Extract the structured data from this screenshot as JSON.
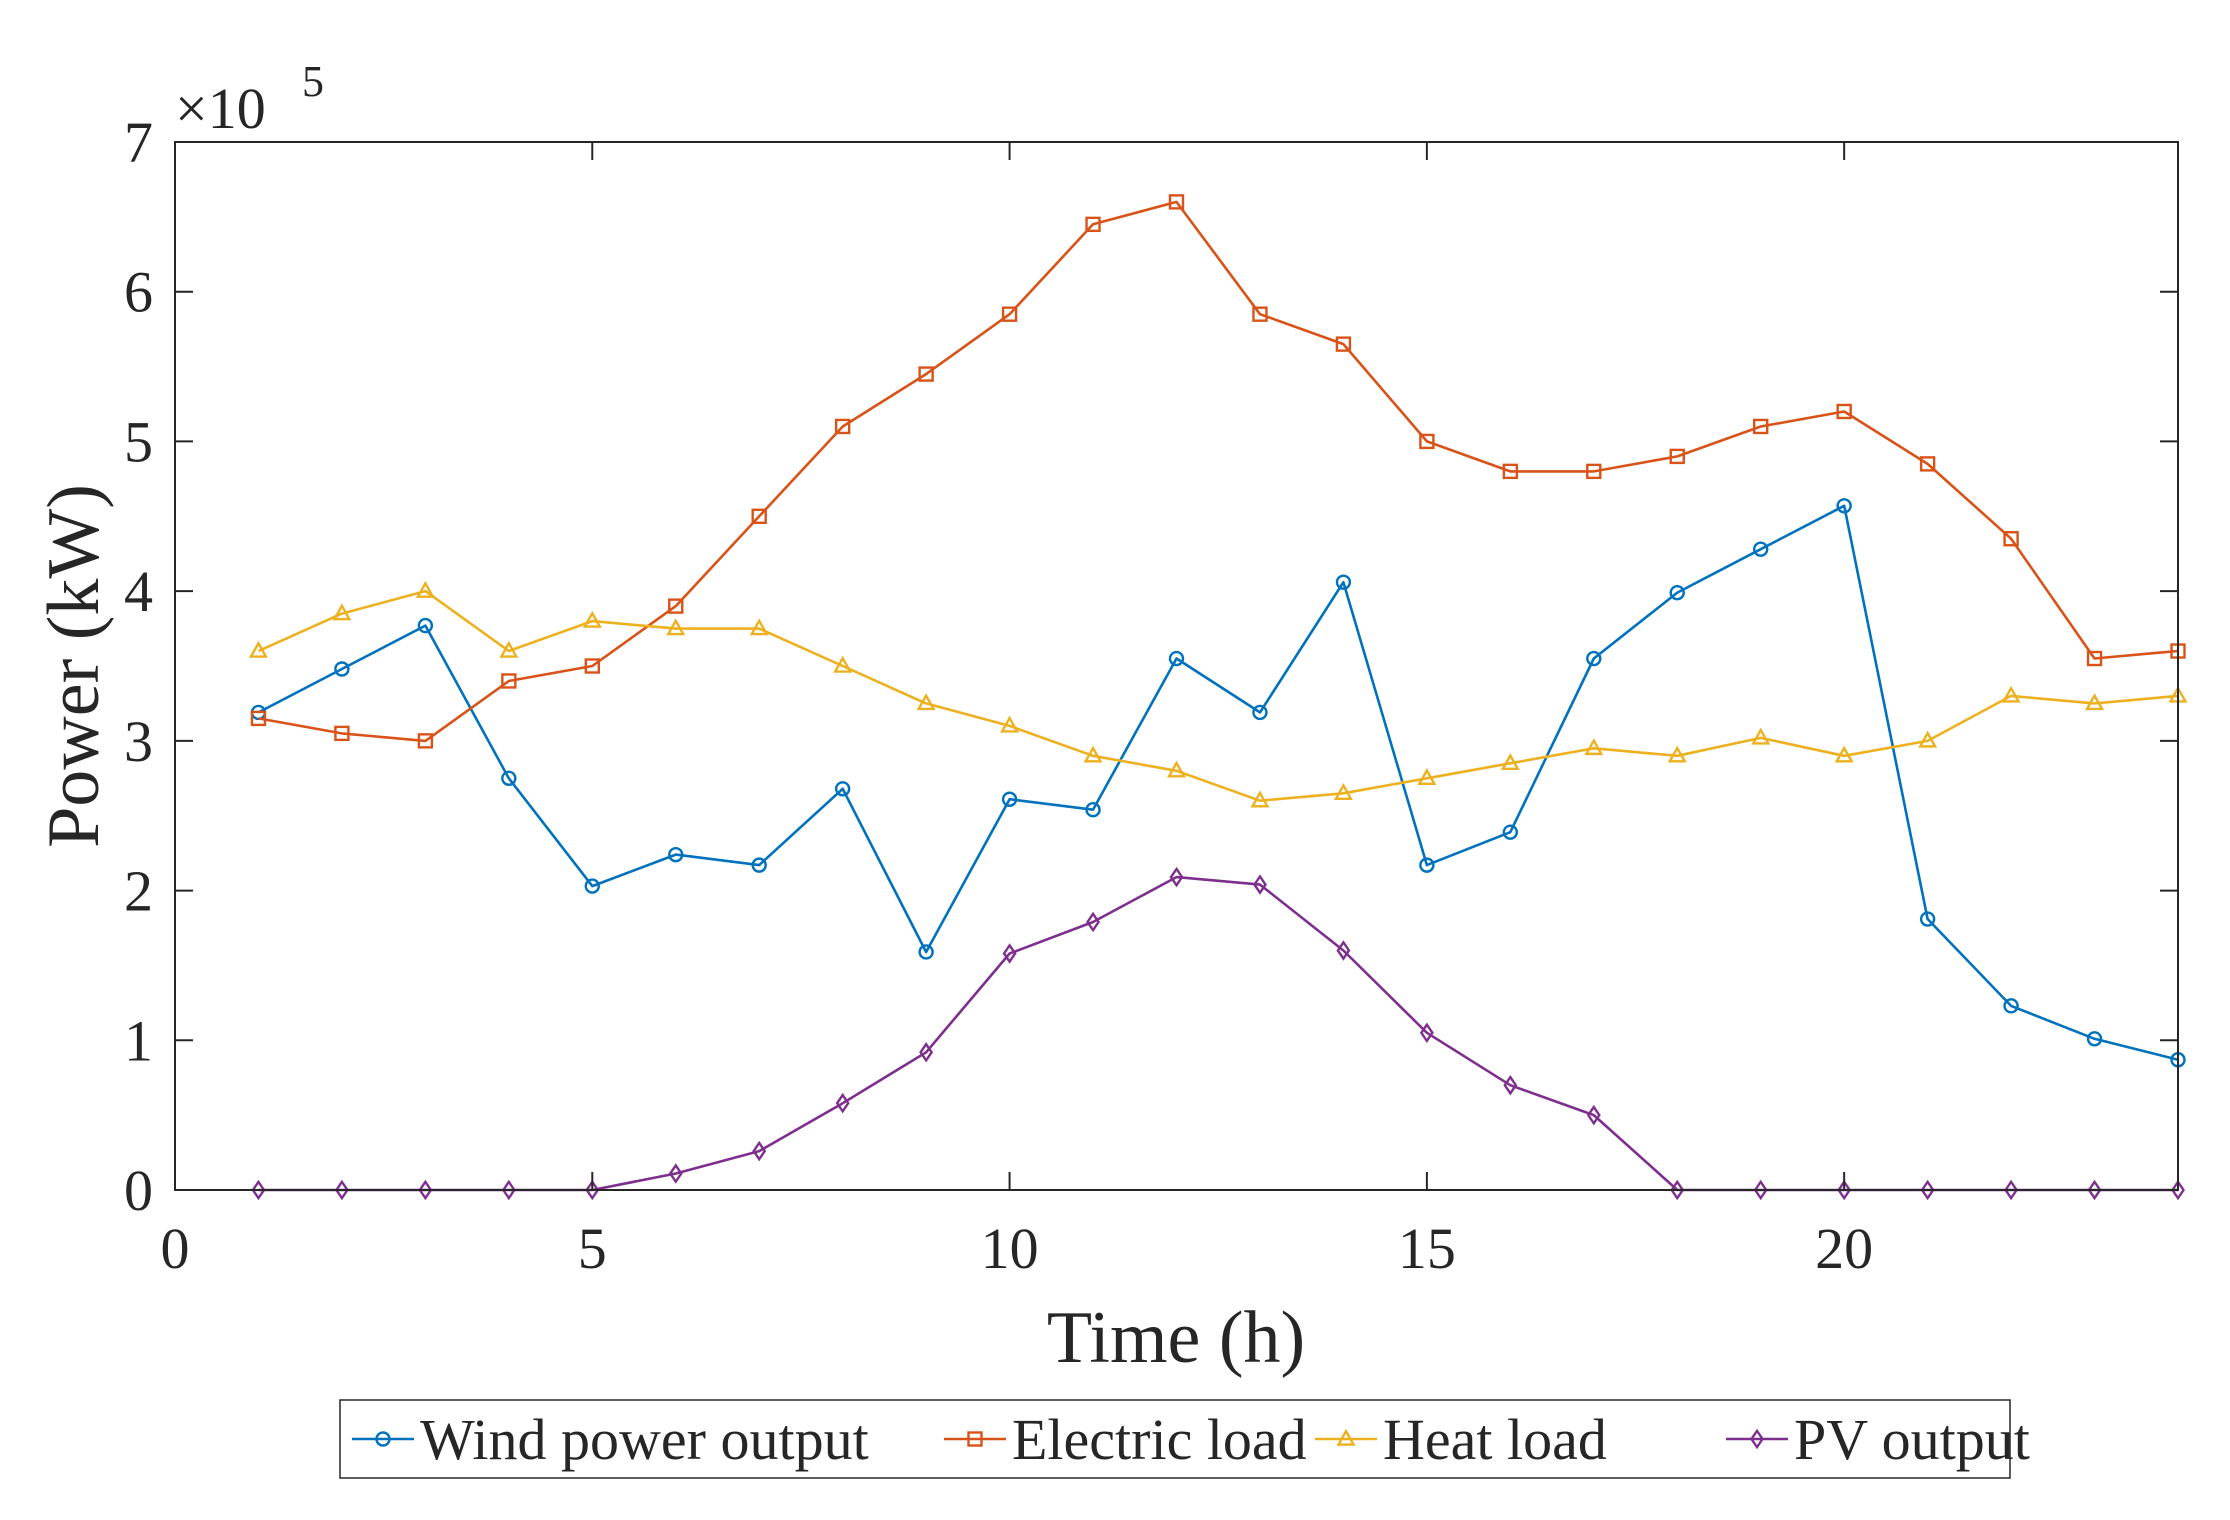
{
  "chart_data": {
    "type": "line",
    "title": "",
    "xlabel": "Time (h)",
    "ylabel": "Power (kW)",
    "y_multiplier_label": "×10",
    "y_multiplier_exponent": "5",
    "xlim": [
      0,
      24
    ],
    "ylim": [
      0,
      7
    ],
    "x_ticks": [
      0,
      5,
      10,
      15,
      20
    ],
    "x_tick_labels": [
      "0",
      "5",
      "10",
      "15",
      "20"
    ],
    "y_ticks": [
      0,
      1,
      2,
      3,
      4,
      5,
      6,
      7
    ],
    "y_tick_labels": [
      "0",
      "1",
      "2",
      "3",
      "4",
      "5",
      "6",
      "7"
    ],
    "grid": false,
    "legend_position": "bottom-outside",
    "x": [
      1,
      2,
      3,
      4,
      5,
      6,
      7,
      8,
      9,
      10,
      11,
      12,
      13,
      14,
      15,
      16,
      17,
      18,
      19,
      20,
      21,
      22,
      23,
      24
    ],
    "series": [
      {
        "name": "Wind power output",
        "color": "#0072BD",
        "marker": "circle",
        "values": [
          3.19,
          3.48,
          3.77,
          2.75,
          2.03,
          2.24,
          2.17,
          2.68,
          1.59,
          2.61,
          2.54,
          3.55,
          3.19,
          4.06,
          2.17,
          2.39,
          3.55,
          3.99,
          4.28,
          4.57,
          1.81,
          1.23,
          1.01,
          0.87
        ]
      },
      {
        "name": "Electric load",
        "color": "#D95319",
        "marker": "square",
        "values": [
          3.15,
          3.05,
          3.0,
          3.4,
          3.5,
          3.9,
          4.5,
          5.1,
          5.45,
          5.85,
          6.45,
          6.6,
          5.85,
          5.65,
          5.0,
          4.8,
          4.8,
          4.9,
          5.1,
          5.2,
          4.85,
          4.35,
          3.55,
          3.6
        ]
      },
      {
        "name": "Heat load",
        "color": "#EDB120",
        "marker": "triangle",
        "values": [
          3.6,
          3.85,
          4.0,
          3.6,
          3.8,
          3.75,
          3.75,
          3.5,
          3.25,
          3.1,
          2.9,
          2.8,
          2.6,
          2.65,
          2.75,
          2.85,
          2.95,
          2.9,
          3.02,
          2.9,
          3.0,
          3.3,
          3.25,
          3.3
        ]
      },
      {
        "name": "PV output",
        "color": "#7E2F8E",
        "marker": "diamond",
        "values": [
          0,
          0,
          0,
          0,
          0,
          0.11,
          0.26,
          0.58,
          0.92,
          1.58,
          1.79,
          2.09,
          2.04,
          1.6,
          1.05,
          0.7,
          0.5,
          0,
          0,
          0,
          0,
          0,
          0,
          0
        ]
      }
    ]
  }
}
